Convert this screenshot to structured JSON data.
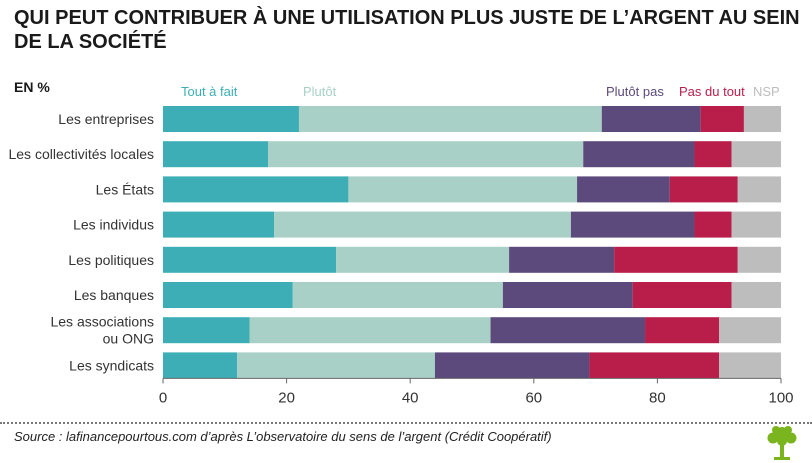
{
  "header": {
    "title": "QUI PEUT CONTRIBUER À UNE UTILISATION PLUS JUSTE DE L’ARGENT AU SEIN DE LA SOCIÉTÉ",
    "unit_label": "EN %"
  },
  "footer": {
    "source": "Source : lafinancepourtous.com d’après L’observatoire du sens de l’argent (Crédit Coopératif)"
  },
  "logo": {
    "icon": "tree-icon",
    "color": "#7ab41f"
  },
  "chart_data": {
    "type": "bar",
    "orientation": "horizontal",
    "stacked": true,
    "categories": [
      [
        "Les entreprises"
      ],
      [
        "Les collectivités locales"
      ],
      [
        "Les États"
      ],
      [
        "Les individus"
      ],
      [
        "Les politiques"
      ],
      [
        "Les banques"
      ],
      [
        "Les associations",
        "ou ONG"
      ],
      [
        "Les syndicats"
      ]
    ],
    "series": [
      {
        "name": "Tout à fait",
        "color": "#3daeb5",
        "values": [
          22,
          17,
          30,
          18,
          28,
          21,
          14,
          12
        ]
      },
      {
        "name": "Plutôt",
        "color": "#a8d0c6",
        "values": [
          49,
          51,
          37,
          48,
          28,
          34,
          39,
          32
        ]
      },
      {
        "name": "Plutôt pas",
        "color": "#5c4a7d",
        "values": [
          16,
          18,
          15,
          20,
          17,
          21,
          25,
          25
        ]
      },
      {
        "name": "Pas du tout",
        "color": "#b91e4b",
        "values": [
          7,
          6,
          11,
          6,
          20,
          16,
          12,
          21
        ]
      },
      {
        "name": "NSP",
        "color": "#bdbdbd",
        "values": [
          6,
          8,
          7,
          8,
          7,
          8,
          10,
          10
        ]
      }
    ],
    "x_ticks": [
      "0",
      "20",
      "40",
      "60",
      "80",
      "100"
    ],
    "xlim": [
      0,
      100
    ],
    "grid": false,
    "legend_placement": "top"
  }
}
